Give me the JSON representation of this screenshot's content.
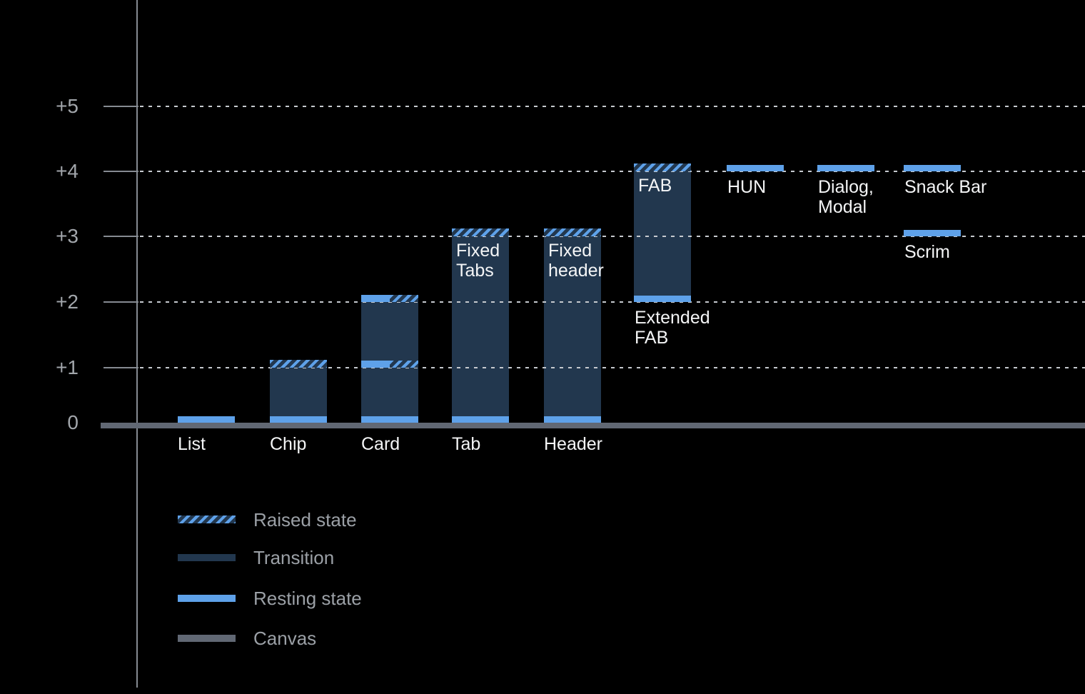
{
  "colors": {
    "background": "#000000",
    "resting": "#5EA1E9",
    "transition": "#22374E",
    "canvas": "#616874",
    "axis": "#868B92",
    "gridline": "#C6CACF",
    "tick_label": "#A2A6AB",
    "legend_label": "#9BA0A6",
    "bar_label": "#F4F5F6"
  },
  "chart_data": {
    "type": "bar",
    "subject": "UI component elevation levels",
    "y_axis": {
      "range": [
        0,
        5
      ],
      "grid": "dotted",
      "ticks": [
        {
          "label": "+5",
          "value": 5
        },
        {
          "label": "+4",
          "value": 4
        },
        {
          "label": "+3",
          "value": 3
        },
        {
          "label": "+2",
          "value": 2
        },
        {
          "label": "+1",
          "value": 1
        },
        {
          "label": "0",
          "value": 0
        }
      ]
    },
    "legend": [
      {
        "label": "Raised state",
        "style": "hatched"
      },
      {
        "label": "Transition",
        "style": "transition"
      },
      {
        "label": "Resting state",
        "style": "resting"
      },
      {
        "label": "Canvas",
        "style": "canvas"
      }
    ],
    "columns": [
      {
        "name": "list",
        "axis_label": "List",
        "bands": [
          {
            "level": 0,
            "style": "resting"
          }
        ]
      },
      {
        "name": "chip",
        "axis_label": "Chip",
        "body": {
          "from": 0,
          "to": 1
        },
        "bands": [
          {
            "level": 1,
            "style": "hatched"
          },
          {
            "level": 0,
            "style": "resting"
          }
        ]
      },
      {
        "name": "card",
        "axis_label": "Card",
        "body": {
          "from": 0,
          "to": 2
        },
        "bands": [
          {
            "level": 2,
            "style": "half"
          },
          {
            "level": 1,
            "style": "half"
          },
          {
            "level": 0,
            "style": "resting"
          }
        ]
      },
      {
        "name": "tab",
        "axis_label": "Tab",
        "inner_label": "Fixed\nTabs",
        "body": {
          "from": 0,
          "to": 3
        },
        "bands": [
          {
            "level": 3,
            "style": "hatched"
          },
          {
            "level": 0,
            "style": "resting"
          }
        ]
      },
      {
        "name": "header",
        "axis_label": "Header",
        "inner_label": "Fixed\nheader",
        "body": {
          "from": 0,
          "to": 3
        },
        "bands": [
          {
            "level": 3,
            "style": "hatched"
          },
          {
            "level": 0,
            "style": "resting"
          }
        ]
      },
      {
        "name": "fab",
        "inner_label": "FAB",
        "body": {
          "from": 2,
          "to": 4
        },
        "bands": [
          {
            "level": 4,
            "style": "hatched"
          },
          {
            "level": 2,
            "style": "resting"
          }
        ],
        "notes": [
          {
            "level": 2,
            "text": "Extended\nFAB"
          }
        ]
      },
      {
        "name": "hun",
        "bands": [
          {
            "level": 4,
            "style": "resting"
          }
        ],
        "notes": [
          {
            "level": 4,
            "text": "HUN"
          }
        ]
      },
      {
        "name": "dialog-modal",
        "bands": [
          {
            "level": 4,
            "style": "resting"
          }
        ],
        "notes": [
          {
            "level": 4,
            "text": "Dialog,\nModal"
          }
        ]
      },
      {
        "name": "snackbar-scrim",
        "bands": [
          {
            "level": 4,
            "style": "resting"
          },
          {
            "level": 3,
            "style": "resting"
          }
        ],
        "notes": [
          {
            "level": 4,
            "text": "Snack Bar"
          },
          {
            "level": 3,
            "text": "Scrim"
          }
        ]
      }
    ]
  }
}
